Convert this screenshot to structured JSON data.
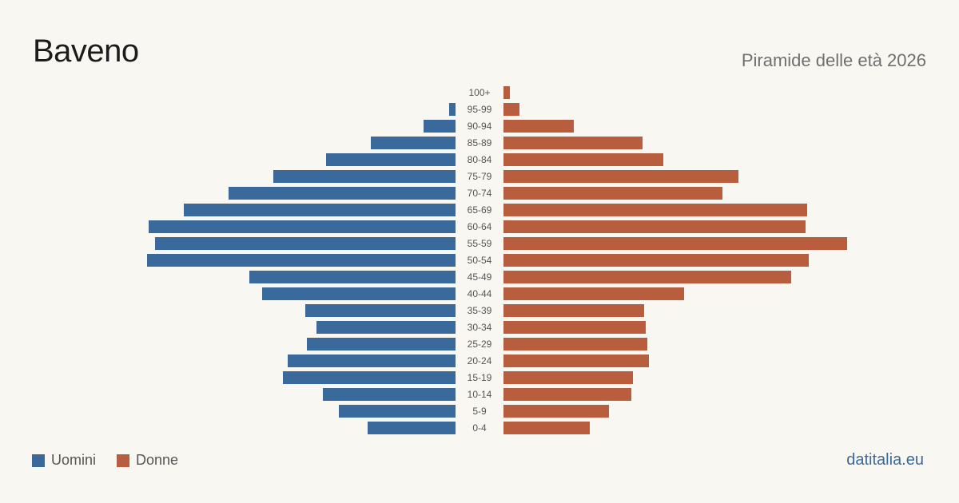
{
  "header": {
    "title": "Baveno",
    "subtitle": "Piramide delle età 2026"
  },
  "legend": {
    "men_label": "Uomini",
    "women_label": "Donne"
  },
  "brand": "datitalia.eu",
  "colors": {
    "men": "#3a6a9c",
    "women": "#b85e3f",
    "background": "#f9f7f2",
    "label": "#555555"
  },
  "chart_data": {
    "type": "bar",
    "orientation": "horizontal-pyramid",
    "categories": [
      "100+",
      "95-99",
      "90-94",
      "85-89",
      "80-84",
      "75-79",
      "70-74",
      "65-69",
      "60-64",
      "55-59",
      "50-54",
      "45-49",
      "40-44",
      "35-39",
      "30-34",
      "25-29",
      "20-24",
      "15-19",
      "10-14",
      "5-9",
      "0-4"
    ],
    "series": [
      {
        "name": "Uomini",
        "values": [
          0,
          4,
          20,
          53,
          81,
          114,
          142,
          170,
          192,
          188,
          193,
          129,
          121,
          94,
          87,
          93,
          105,
          108,
          83,
          73,
          55
        ]
      },
      {
        "name": "Donne",
        "values": [
          4,
          10,
          44,
          87,
          100,
          147,
          137,
          190,
          189,
          215,
          191,
          180,
          113,
          88,
          89,
          90,
          91,
          81,
          80,
          66,
          54
        ]
      }
    ],
    "legend_position": "bottom-left",
    "grid": false
  }
}
